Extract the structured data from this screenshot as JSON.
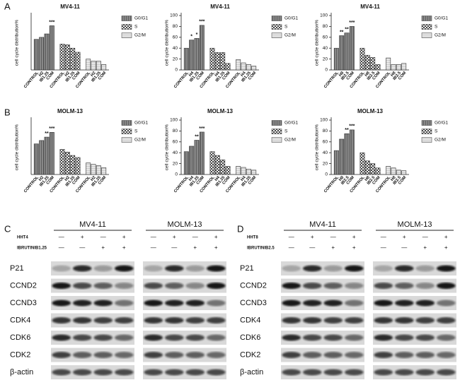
{
  "panel_labels": [
    "A",
    "B",
    "C",
    "D"
  ],
  "chart_data": [
    {
      "type": "bar",
      "title": "MV4-11",
      "y_label": "cell cycle distribution%",
      "categories": [
        "CONTROL",
        "H2",
        "IB1.25",
        "COM"
      ],
      "annotations": [
        null,
        null,
        null,
        "***"
      ],
      "ylim": [
        0,
        80
      ],
      "legend": "right",
      "series": [
        {
          "name": "G0/G1",
          "color": "#808080",
          "values": [
            45,
            48,
            53,
            65
          ]
        },
        {
          "name": "S",
          "color": "#b0b0b0",
          "values": [
            38,
            37,
            32,
            26
          ]
        },
        {
          "name": "G2/M",
          "color": "#e2e2e2",
          "values": [
            16,
            13,
            13,
            8
          ]
        }
      ]
    },
    {
      "type": "bar",
      "title": "MV4-11",
      "y_label": "cell cycle distribution%",
      "categories": [
        "CONTROL",
        "H4",
        "IB1.25",
        "COM"
      ],
      "annotations": [
        null,
        "*",
        "*",
        "***"
      ],
      "ylim": [
        0,
        100
      ],
      "yticks": [
        0,
        20,
        40,
        60,
        80,
        100
      ],
      "legend": "right",
      "series": [
        {
          "name": "G0/G1",
          "color": "#808080",
          "values": [
            40,
            55,
            58,
            82
          ]
        },
        {
          "name": "S",
          "color": "#b0b0b0",
          "values": [
            40,
            32,
            32,
            12
          ]
        },
        {
          "name": "G2/M",
          "color": "#e2e2e2",
          "values": [
            19,
            13,
            10,
            7
          ]
        }
      ]
    },
    {
      "type": "bar",
      "title": "MV4-11",
      "y_label": "cell cycle distribution%",
      "categories": [
        "CONTROL",
        "H8",
        "IB2.5",
        "COM"
      ],
      "annotations": [
        null,
        "**",
        "**",
        "***"
      ],
      "ylim": [
        0,
        100
      ],
      "yticks": [
        0,
        20,
        40,
        60,
        80,
        100
      ],
      "legend": "right",
      "series": [
        {
          "name": "G0/G1",
          "color": "#808080",
          "values": [
            40,
            63,
            68,
            80
          ]
        },
        {
          "name": "S",
          "color": "#b0b0b0",
          "values": [
            40,
            27,
            23,
            10
          ]
        },
        {
          "name": "G2/M",
          "color": "#e2e2e2",
          "values": [
            22,
            10,
            10,
            12
          ]
        }
      ]
    },
    {
      "type": "bar",
      "title": "MOLM-13",
      "y_label": "cell cycle distribution%",
      "categories": [
        "CONTROL",
        "H2",
        "IB1.25",
        "COM"
      ],
      "annotations": [
        null,
        null,
        "**",
        "***"
      ],
      "ylim": [
        0,
        80
      ],
      "legend": "right",
      "series": [
        {
          "name": "G0/G1",
          "color": "#808080",
          "values": [
            45,
            50,
            55,
            62
          ]
        },
        {
          "name": "S",
          "color": "#b0b0b0",
          "values": [
            37,
            33,
            28,
            25
          ]
        },
        {
          "name": "G2/M",
          "color": "#e2e2e2",
          "values": [
            17,
            15,
            13,
            10
          ]
        }
      ]
    },
    {
      "type": "bar",
      "title": "MOLM-13",
      "y_label": "cell cycle distribution%",
      "categories": [
        "CONTROL",
        "H4",
        "IB1.25",
        "COM"
      ],
      "annotations": [
        null,
        null,
        "**",
        "***"
      ],
      "ylim": [
        0,
        100
      ],
      "yticks": [
        0,
        20,
        40,
        60,
        80,
        100
      ],
      "legend": "right",
      "series": [
        {
          "name": "G0/G1",
          "color": "#808080",
          "values": [
            42,
            52,
            63,
            78
          ]
        },
        {
          "name": "S",
          "color": "#b0b0b0",
          "values": [
            42,
            35,
            27,
            15
          ]
        },
        {
          "name": "G2/M",
          "color": "#e2e2e2",
          "values": [
            15,
            13,
            10,
            8
          ]
        }
      ]
    },
    {
      "type": "bar",
      "title": "MOLM-13",
      "y_label": "cell cycle distribution%",
      "categories": [
        "CONTROL",
        "H8",
        "IB2.5",
        "COM"
      ],
      "annotations": [
        null,
        null,
        "**",
        "***"
      ],
      "ylim": [
        0,
        100
      ],
      "yticks": [
        0,
        20,
        40,
        60,
        80,
        100
      ],
      "legend": "right",
      "series": [
        {
          "name": "G0/G1",
          "color": "#808080",
          "values": [
            44,
            65,
            75,
            82
          ]
        },
        {
          "name": "S",
          "color": "#b0b0b0",
          "values": [
            40,
            25,
            20,
            12
          ]
        },
        {
          "name": "G2/M",
          "color": "#e2e2e2",
          "values": [
            15,
            12,
            8,
            7
          ]
        }
      ]
    }
  ],
  "blots": [
    {
      "cell_lines": [
        "MV4-11",
        "MOLM-13"
      ],
      "treatments": [
        {
          "name": "HHT4",
          "signs": [
            "—",
            "+",
            "—",
            "+"
          ]
        },
        {
          "name": "IBRUTINIB1.25",
          "signs": [
            "—",
            "—",
            "+",
            "+"
          ]
        }
      ],
      "proteins": [
        "P21",
        "CCND2",
        "CCND3",
        "CDK4",
        "CDK6",
        "CDK2",
        "β-actin"
      ]
    },
    {
      "cell_lines": [
        "MV4-11",
        "MOLM-13"
      ],
      "treatments": [
        {
          "name": "HHT8",
          "signs": [
            "—",
            "+",
            "—",
            "+"
          ]
        },
        {
          "name": "IBRUTINIB2.5",
          "signs": [
            "—",
            "—",
            "+",
            "+"
          ]
        }
      ],
      "proteins": [
        "P21",
        "CCND2",
        "CCND3",
        "CDK4",
        "CDK6",
        "CDK2",
        "β-actin"
      ]
    }
  ]
}
